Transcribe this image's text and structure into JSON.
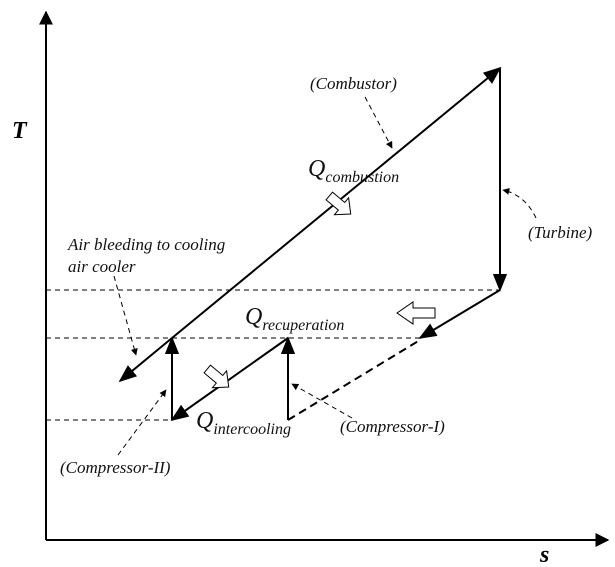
{
  "axes": {
    "y_label": "T",
    "x_label": "s"
  },
  "labels": {
    "combustor": "(Combustor)",
    "turbine": "(Turbine)",
    "air_bleeding": [
      "Air bleeding to cooling",
      "air cooler"
    ],
    "compressor_1": "(Compressor-I)",
    "compressor_2": "(Compressor-II)"
  },
  "heat": {
    "combustion": {
      "symbol": "Q",
      "subscript": "combustion"
    },
    "recuperation": {
      "symbol": "Q",
      "subscript": "recuperation"
    },
    "intercooling": {
      "symbol": "Q",
      "subscript": "intercooling"
    }
  }
}
